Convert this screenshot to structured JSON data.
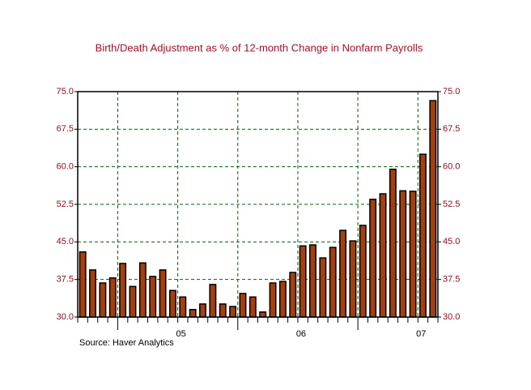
{
  "chart_data": {
    "type": "bar",
    "title": "Birth/Death Adjustment as % of 12-month Change in Nonfarm Payrolls",
    "source": "Source: Haver Analytics",
    "categories": [
      null,
      null,
      null,
      null,
      null,
      null,
      null,
      null,
      null,
      null,
      "05",
      null,
      null,
      null,
      null,
      null,
      null,
      null,
      null,
      null,
      null,
      null,
      "06",
      null,
      null,
      null,
      null,
      null,
      null,
      null,
      null,
      null,
      null,
      null,
      "07",
      null
    ],
    "values": [
      43.0,
      39.4,
      36.8,
      37.8,
      40.7,
      36.1,
      40.8,
      38.1,
      39.4,
      35.3,
      34.0,
      31.5,
      32.6,
      36.5,
      32.6,
      32.1,
      34.7,
      34.0,
      31.0,
      36.8,
      37.1,
      38.9,
      44.2,
      44.4,
      41.8,
      43.9,
      47.3,
      45.2,
      48.3,
      53.5,
      54.6,
      59.5,
      55.2,
      55.1,
      62.5,
      73.2
    ],
    "color": "#a3400c",
    "ylim": [
      30,
      75
    ],
    "yticks": [
      {
        "value": 30,
        "label": "30.0"
      },
      {
        "value": 37.5,
        "label": "37.5"
      },
      {
        "value": 45,
        "label": "45.0"
      },
      {
        "value": 52.5,
        "label": "52.5"
      },
      {
        "value": 60,
        "label": "60.0"
      },
      {
        "value": 67.5,
        "label": "67.5"
      },
      {
        "value": 75,
        "label": "75.0"
      }
    ],
    "grid": true
  }
}
